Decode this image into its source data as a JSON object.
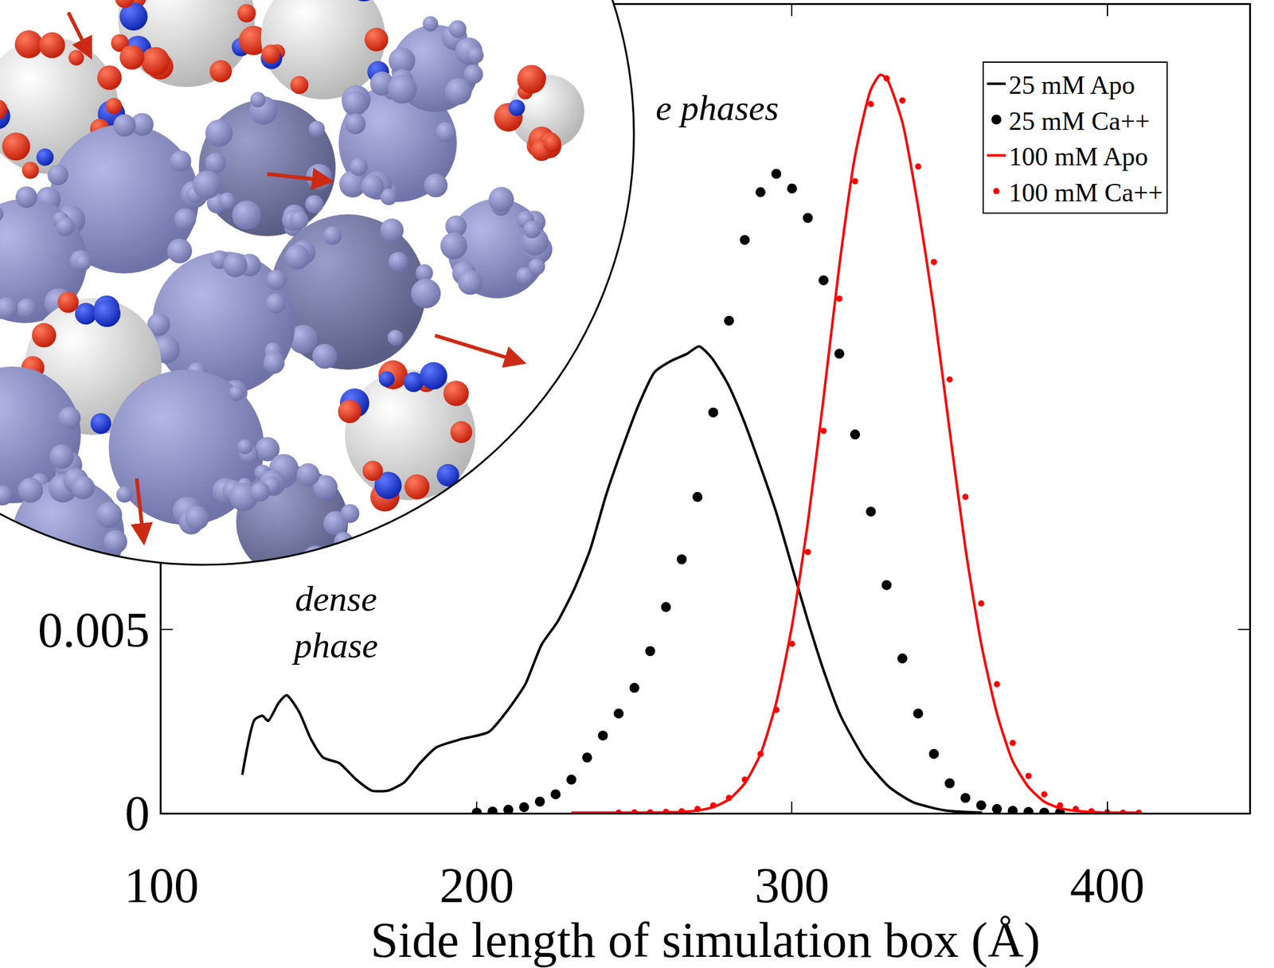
{
  "chart_data": {
    "type": "line",
    "x_label": "Side length of simulation box (Å)",
    "xlim": [
      100,
      445
    ],
    "xticks": [
      100,
      200,
      300,
      400
    ],
    "ylim": [
      0,
      0.022
    ],
    "yticks": [
      0,
      0.005
    ],
    "grid": false,
    "legend": "top right",
    "annotations": [
      {
        "text": "dense phase",
        "x": 155,
        "y": 0.0052
      },
      {
        "text": "e phases",
        "x": 256.4,
        "y": 0.0192
      }
    ],
    "series": [
      {
        "name": "25 mM Apo",
        "color": "#000000",
        "line_style": "solid",
        "marker": "none",
        "x": [
          125.6,
          129.5,
          132,
          133.8,
          137.2,
          139.7,
          143.6,
          147.4,
          151.3,
          156.4,
          161.5,
          166.7,
          171.8,
          176.9,
          182,
          187.2,
          194.9,
          203.8,
          210.3,
          215.4,
          220.5,
          225.6,
          230.8,
          235.9,
          241,
          246.2,
          251.3,
          256.4,
          261.5,
          266.7,
          270.5,
          274.4,
          279.5,
          284.6,
          289.7,
          294.9,
          300,
          305.1,
          310.3,
          315.4,
          323.1,
          330.8,
          338.5,
          348.7,
          360.3
        ],
        "values": [
          0.00103,
          0.00253,
          0.00264,
          0.0025,
          0.003,
          0.0032,
          0.00275,
          0.002,
          0.0015,
          0.00135,
          0.00092,
          0.0006,
          0.0006,
          0.00082,
          0.00135,
          0.00178,
          0.002,
          0.0022,
          0.00285,
          0.0035,
          0.00457,
          0.0052,
          0.00607,
          0.00715,
          0.00865,
          0.00994,
          0.0111,
          0.012,
          0.0123,
          0.0125,
          0.0127,
          0.0124,
          0.0117,
          0.0107,
          0.0095,
          0.0082,
          0.0067,
          0.0052,
          0.0038,
          0.00264,
          0.00146,
          0.0007,
          0.00028,
          6e-05,
          0
        ]
      },
      {
        "name": "25 mM Ca++",
        "color": "#000000",
        "line_style": "none",
        "marker": "circle",
        "x": [
          200,
          205,
          210,
          215,
          220,
          225,
          230,
          235,
          240,
          245,
          250,
          255,
          260,
          265,
          270,
          275,
          280,
          285,
          290,
          295,
          300,
          305,
          310,
          315,
          320,
          325,
          330,
          335,
          340,
          345,
          350,
          355,
          360,
          365,
          370,
          375,
          380,
          385
        ],
        "values": [
          0,
          3e-05,
          8e-05,
          0.00015,
          0.0003,
          0.0005,
          0.0009,
          0.0015,
          0.0021,
          0.0027,
          0.0034,
          0.0044,
          0.0056,
          0.0069,
          0.0086,
          0.0109,
          0.0134,
          0.0156,
          0.0169,
          0.0174,
          0.017,
          0.0162,
          0.0145,
          0.0125,
          0.0103,
          0.0082,
          0.0062,
          0.0042,
          0.0027,
          0.0016,
          0.0008,
          0.0004,
          0.0002,
          0.0001,
          5e-05,
          2e-05,
          0,
          0
        ]
      },
      {
        "name": "100 mM Apo",
        "color": "#ff0000",
        "line_style": "solid",
        "marker": "none",
        "x": [
          230,
          240,
          250,
          260,
          265,
          270,
          275,
          280,
          285,
          290,
          295,
          300,
          305,
          310,
          315,
          320,
          325,
          328,
          330,
          335,
          340,
          345,
          350,
          355,
          360,
          365,
          370,
          375,
          380,
          385,
          390,
          395,
          400,
          410
        ],
        "values": [
          0,
          0,
          0,
          1e-05,
          2e-05,
          6e-05,
          0.00015,
          0.00036,
          0.0008,
          0.0016,
          0.003,
          0.0051,
          0.0079,
          0.0113,
          0.0149,
          0.0179,
          0.0197,
          0.0201,
          0.02,
          0.0188,
          0.0165,
          0.0137,
          0.0104,
          0.0072,
          0.0046,
          0.0027,
          0.0014,
          0.0007,
          0.0003,
          0.00012,
          5e-05,
          2e-05,
          0,
          0
        ]
      },
      {
        "name": "100 mM Ca++",
        "color": "#ff0000",
        "line_style": "none",
        "marker": "circle",
        "x": [
          245,
          250,
          255,
          260,
          265,
          270,
          275,
          280,
          285,
          290,
          295,
          300,
          305,
          310,
          315,
          320,
          325,
          330,
          335,
          340,
          345,
          350,
          355,
          360,
          365,
          370,
          375,
          380,
          385,
          390,
          395,
          400,
          405,
          410
        ],
        "values": [
          0,
          1e-05,
          1e-05,
          2e-05,
          4e-05,
          0.0001,
          0.0002,
          0.0004,
          0.0009,
          0.0016,
          0.0028,
          0.0046,
          0.0071,
          0.0104,
          0.014,
          0.0172,
          0.0193,
          0.02,
          0.0194,
          0.0176,
          0.015,
          0.0118,
          0.0086,
          0.0057,
          0.0035,
          0.0019,
          0.001,
          0.0005,
          0.0002,
          0.0001,
          4e-05,
          1e-05,
          0,
          0
        ]
      }
    ]
  }
}
